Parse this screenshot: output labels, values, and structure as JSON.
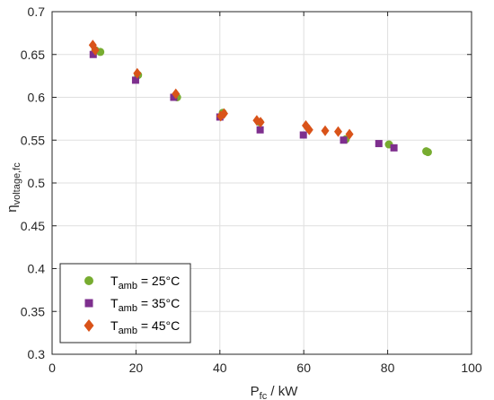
{
  "chart_data": {
    "type": "scatter",
    "xlabel": {
      "main": "P",
      "sub": "fc",
      "rest": " / kW"
    },
    "ylabel": {
      "main": "η",
      "sub": "voltage,fc"
    },
    "xlim": [
      0,
      100
    ],
    "ylim": [
      0.3,
      0.7
    ],
    "x_ticks": [
      "0",
      "20",
      "40",
      "60",
      "80",
      "100"
    ],
    "y_ticks": [
      "0.3",
      "0.35",
      "0.4",
      "0.45",
      "0.5",
      "0.55",
      "0.6",
      "0.65",
      "0.7"
    ],
    "grid": true,
    "legend_position": "bottom-left",
    "series": [
      {
        "name": {
          "main": "T",
          "sub": "amb",
          "rest": " = 25°C"
        },
        "marker": "circle",
        "color": "#77AC30",
        "points": [
          [
            10.3,
            0.655
          ],
          [
            11.5,
            0.653
          ],
          [
            20.5,
            0.626
          ],
          [
            29.8,
            0.6
          ],
          [
            40.7,
            0.582
          ],
          [
            49.5,
            0.571
          ],
          [
            70.0,
            0.551
          ],
          [
            80.3,
            0.545
          ],
          [
            89.2,
            0.537
          ],
          [
            89.6,
            0.536
          ]
        ]
      },
      {
        "name": {
          "main": "T",
          "sub": "amb",
          "rest": " = 35°C"
        },
        "marker": "square",
        "color": "#7E2F8E",
        "points": [
          [
            9.8,
            0.65
          ],
          [
            19.9,
            0.62
          ],
          [
            29.0,
            0.6
          ],
          [
            40.0,
            0.577
          ],
          [
            49.6,
            0.562
          ],
          [
            59.9,
            0.556
          ],
          [
            69.5,
            0.55
          ],
          [
            77.9,
            0.546
          ],
          [
            81.5,
            0.541
          ]
        ]
      },
      {
        "name": {
          "main": "T",
          "sub": "amb",
          "rest": " = 45°C"
        },
        "marker": "diamond",
        "color": "#D95319",
        "points": [
          [
            9.7,
            0.661
          ],
          [
            10.3,
            0.655
          ],
          [
            20.3,
            0.628
          ],
          [
            29.5,
            0.604
          ],
          [
            40.2,
            0.578
          ],
          [
            41.0,
            0.581
          ],
          [
            48.8,
            0.573
          ],
          [
            49.7,
            0.571
          ],
          [
            60.5,
            0.567
          ],
          [
            61.3,
            0.562
          ],
          [
            65.1,
            0.561
          ],
          [
            68.2,
            0.56
          ],
          [
            70.9,
            0.557
          ]
        ]
      }
    ]
  }
}
